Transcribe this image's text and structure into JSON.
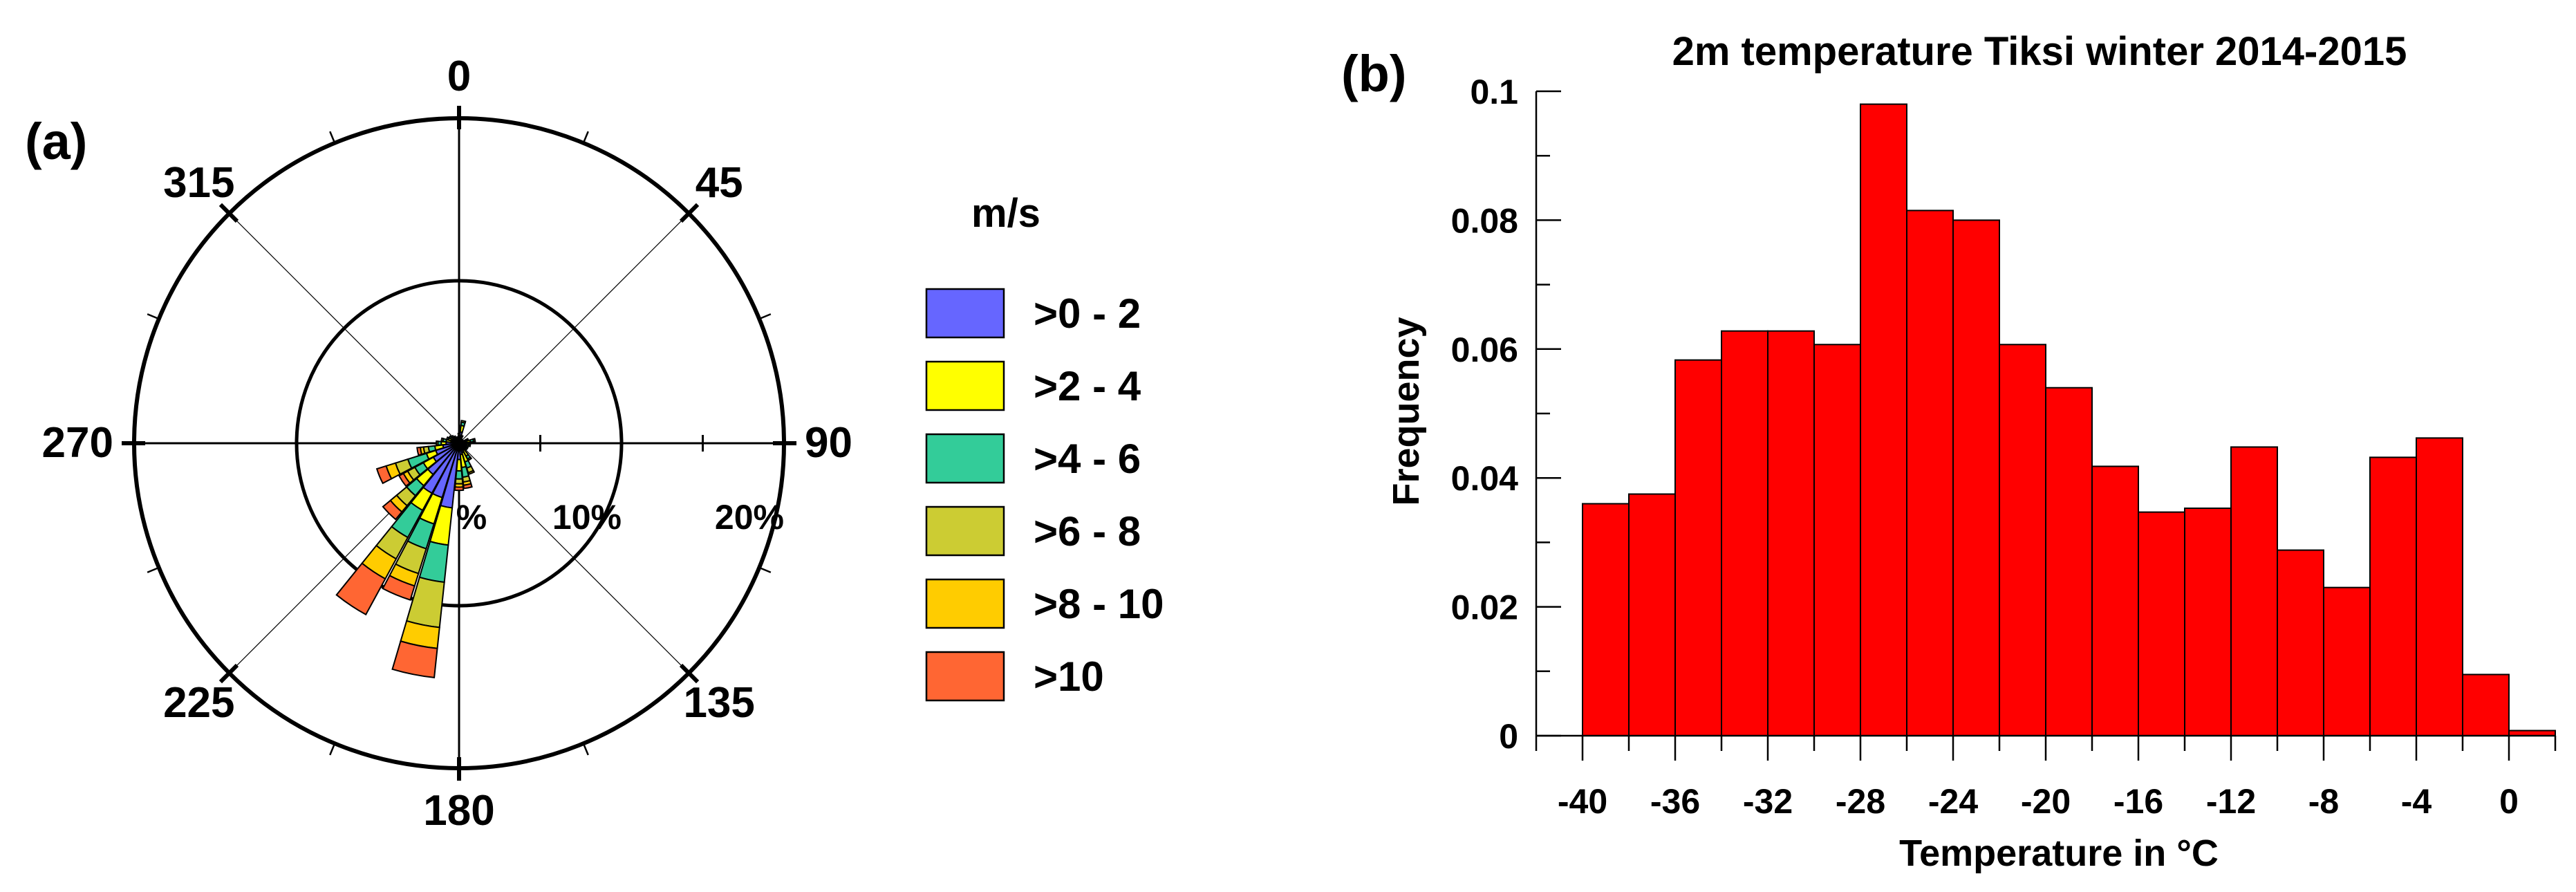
{
  "chart_data": [
    {
      "panel_label": "(a)",
      "type": "wind-rose",
      "radial_max_percent": 20,
      "direction_labels": [
        "0",
        "45",
        "90",
        "135",
        "180",
        "225",
        "270",
        "315"
      ],
      "radial_labels": [
        "%",
        "10%",
        "20%"
      ],
      "legend": {
        "title": "m/s",
        "placement": "right",
        "bins": [
          {
            "label": ">0 - 2",
            "color": "#6666ff"
          },
          {
            "label": ">2 - 4",
            "color": "#ffff00"
          },
          {
            "label": ">4 - 6",
            "color": "#33cc99"
          },
          {
            "label": ">6 - 8",
            "color": "#cccc33"
          },
          {
            "label": ">8 - 10",
            "color": "#ffcc00"
          },
          {
            "label": ">10",
            "color": "#ff6633"
          }
        ]
      },
      "sectors": [
        {
          "dir": 0,
          "values": [
            0.4,
            0.2,
            0,
            0,
            0,
            0
          ]
        },
        {
          "dir": 11.25,
          "values": [
            0.7,
            0.4,
            0.2,
            0.1,
            0,
            0
          ]
        },
        {
          "dir": 22.5,
          "values": [
            0.3,
            0.2,
            0,
            0,
            0,
            0
          ]
        },
        {
          "dir": 33.75,
          "values": [
            0.2,
            0.1,
            0,
            0,
            0,
            0
          ]
        },
        {
          "dir": 45,
          "values": [
            0.2,
            0.1,
            0,
            0,
            0,
            0
          ]
        },
        {
          "dir": 56.25,
          "values": [
            0.2,
            0.1,
            0,
            0,
            0,
            0
          ]
        },
        {
          "dir": 67.5,
          "values": [
            0.3,
            0.2,
            0.1,
            0,
            0,
            0
          ]
        },
        {
          "dir": 78.75,
          "values": [
            0.4,
            0.3,
            0.2,
            0.1,
            0,
            0
          ]
        },
        {
          "dir": 90,
          "values": [
            0.3,
            0.2,
            0.1,
            0,
            0,
            0
          ]
        },
        {
          "dir": 101.25,
          "values": [
            0.4,
            0.2,
            0.1,
            0,
            0,
            0
          ]
        },
        {
          "dir": 112.5,
          "values": [
            0.3,
            0.2,
            0.1,
            0,
            0,
            0
          ]
        },
        {
          "dir": 123.75,
          "values": [
            0.3,
            0.2,
            0.1,
            0,
            0,
            0
          ]
        },
        {
          "dir": 135,
          "values": [
            0.2,
            0.1,
            0,
            0,
            0,
            0
          ]
        },
        {
          "dir": 146.25,
          "values": [
            0.5,
            0.4,
            0.2,
            0.1,
            0,
            0
          ]
        },
        {
          "dir": 157.5,
          "values": [
            0.6,
            0.6,
            0.4,
            0.3,
            0.1,
            0
          ]
        },
        {
          "dir": 168.75,
          "values": [
            0.7,
            0.8,
            0.6,
            0.3,
            0.2,
            0.2
          ]
        },
        {
          "dir": 180,
          "values": [
            1.0,
            0.7,
            0.5,
            0.3,
            0.2,
            0.2
          ]
        },
        {
          "dir": 191.25,
          "values": [
            4.0,
            2.3,
            2.3,
            2.8,
            1.3,
            1.8
          ]
        },
        {
          "dir": 202.5,
          "values": [
            3.5,
            1.7,
            1.6,
            1.6,
            0.8,
            0.9
          ]
        },
        {
          "dir": 213.75,
          "values": [
            3.5,
            1.2,
            1.9,
            1.5,
            1.4,
            2.5
          ]
        },
        {
          "dir": 225,
          "values": [
            2.5,
            0.9,
            0.8,
            0.8,
            0.5,
            0.6
          ]
        },
        {
          "dir": 236.25,
          "values": [
            1.8,
            0.7,
            0.6,
            0.5,
            0.3,
            0.3
          ]
        },
        {
          "dir": 247.5,
          "values": [
            1.5,
            0.6,
            1.2,
            0.8,
            0.6,
            0.6
          ]
        },
        {
          "dir": 258.75,
          "values": [
            1.0,
            0.5,
            0.4,
            0.3,
            0.2,
            0.2
          ]
        },
        {
          "dir": 270,
          "values": [
            0.8,
            0.3,
            0.2,
            0.1,
            0,
            0
          ]
        },
        {
          "dir": 281.25,
          "values": [
            0.5,
            0.3,
            0.2,
            0.1,
            0,
            0
          ]
        },
        {
          "dir": 292.5,
          "values": [
            0.5,
            0.2,
            0.1,
            0,
            0,
            0
          ]
        },
        {
          "dir": 303.75,
          "values": [
            0.4,
            0.2,
            0.1,
            0,
            0,
            0
          ]
        },
        {
          "dir": 315,
          "values": [
            0.3,
            0.2,
            0.1,
            0,
            0,
            0
          ]
        },
        {
          "dir": 326.25,
          "values": [
            0.3,
            0.2,
            0,
            0,
            0,
            0
          ]
        },
        {
          "dir": 337.5,
          "values": [
            0.3,
            0.1,
            0,
            0,
            0,
            0
          ]
        },
        {
          "dir": 348.75,
          "values": [
            0.3,
            0.1,
            0,
            0,
            0,
            0
          ]
        }
      ]
    },
    {
      "panel_label": "(b)",
      "type": "bar",
      "title": "2m temperature Tiksi winter 2014-2015",
      "xlabel": "Temperature in °C",
      "ylabel": "Frequency",
      "xlim": [
        -42,
        2
      ],
      "ylim": [
        0,
        0.1
      ],
      "xticks": [
        -40,
        -36,
        -32,
        -28,
        -24,
        -20,
        -16,
        -12,
        -8,
        -4,
        0
      ],
      "yticks": [
        0,
        0.02,
        0.04,
        0.06,
        0.08,
        0.1
      ],
      "ytick_labels": [
        "0",
        "0.02",
        "0.04",
        "0.06",
        "0.08",
        "0.1"
      ],
      "bin_width": 2,
      "bar_color": "#ff0000",
      "bins": [
        {
          "x0": -40,
          "value": 0.036
        },
        {
          "x0": -38,
          "value": 0.0375
        },
        {
          "x0": -36,
          "value": 0.0583
        },
        {
          "x0": -34,
          "value": 0.0628
        },
        {
          "x0": -32,
          "value": 0.0628
        },
        {
          "x0": -30,
          "value": 0.0607
        },
        {
          "x0": -28,
          "value": 0.098
        },
        {
          "x0": -26,
          "value": 0.0815
        },
        {
          "x0": -24,
          "value": 0.08
        },
        {
          "x0": -22,
          "value": 0.0607
        },
        {
          "x0": -20,
          "value": 0.054
        },
        {
          "x0": -18,
          "value": 0.0418
        },
        {
          "x0": -16,
          "value": 0.0347
        },
        {
          "x0": -14,
          "value": 0.0353
        },
        {
          "x0": -12,
          "value": 0.0448
        },
        {
          "x0": -10,
          "value": 0.0288
        },
        {
          "x0": -8,
          "value": 0.023
        },
        {
          "x0": -6,
          "value": 0.0432
        },
        {
          "x0": -4,
          "value": 0.0462
        },
        {
          "x0": -2,
          "value": 0.0095
        },
        {
          "x0": 0,
          "value": 0.0008
        }
      ]
    }
  ]
}
